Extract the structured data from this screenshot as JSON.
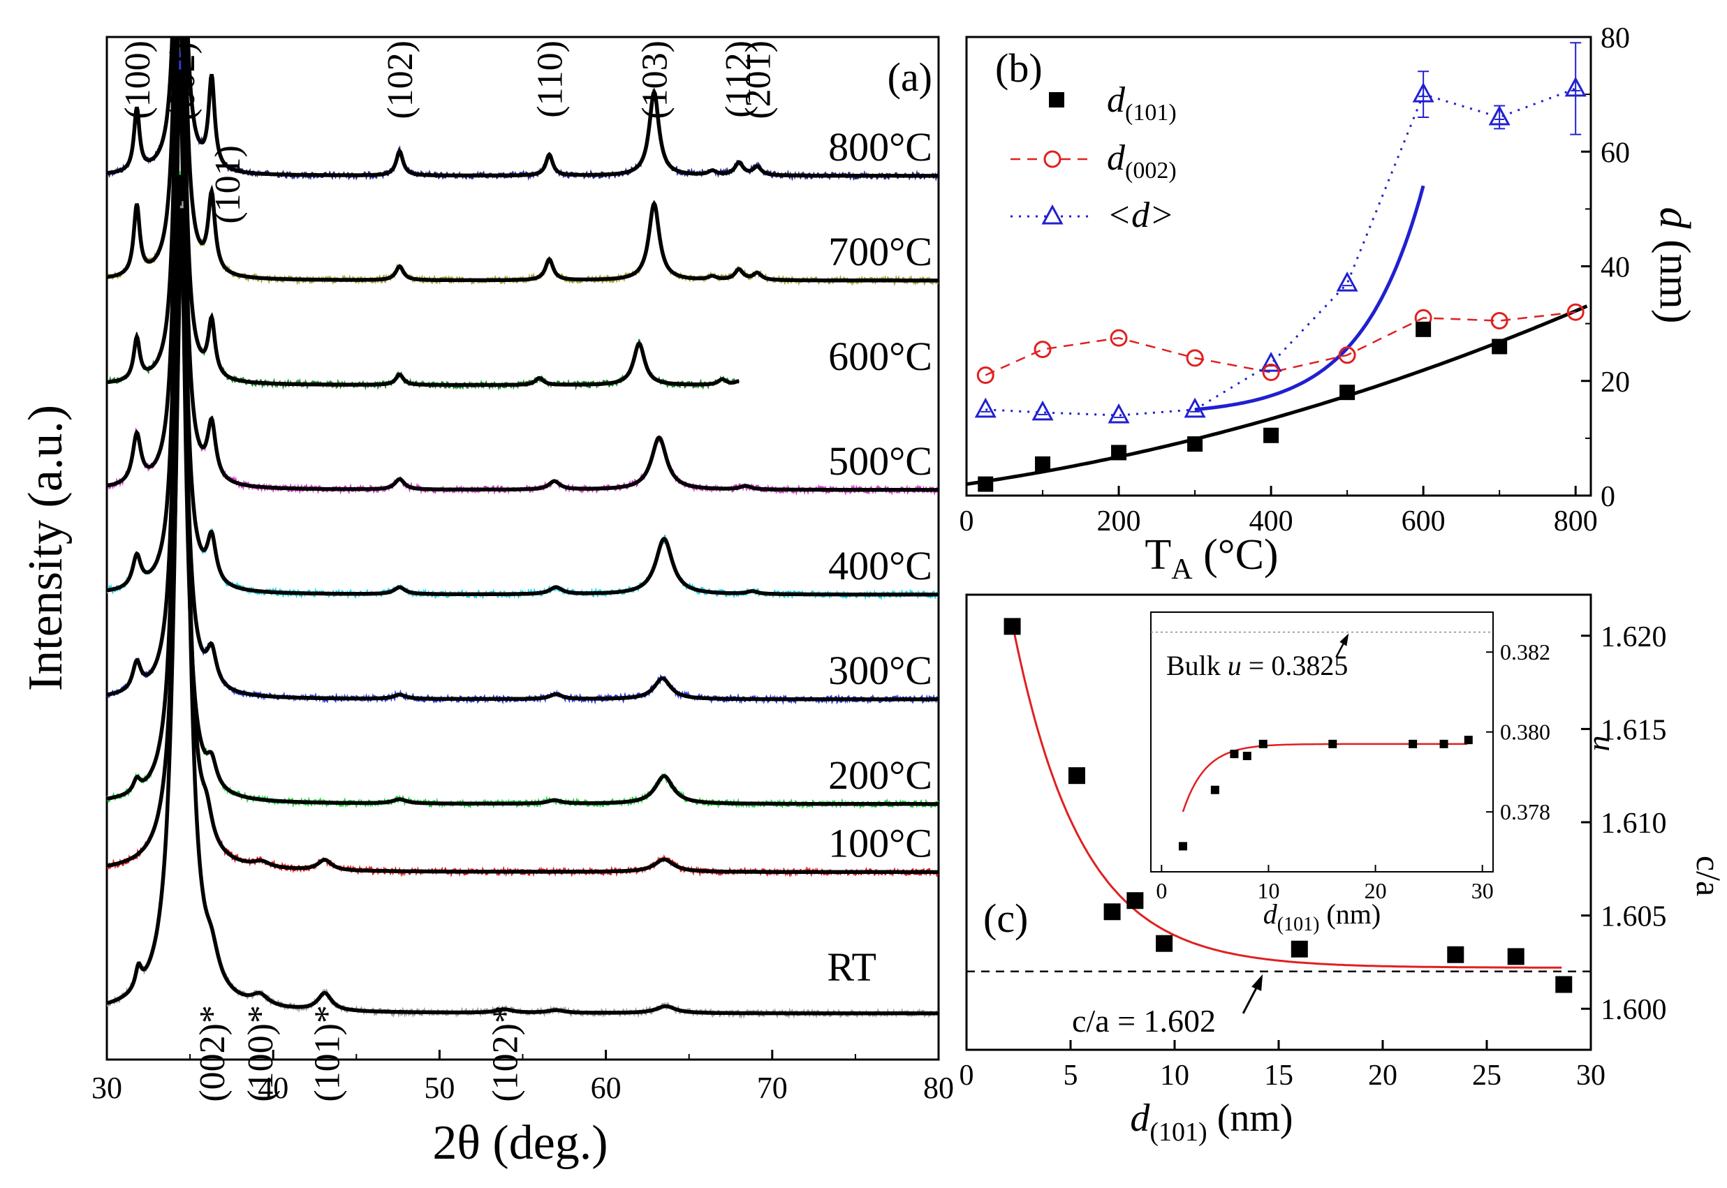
{
  "chart_data": [
    {
      "panel": "a",
      "type": "line",
      "panel_label": "(a)",
      "xlabel": "2θ (deg.)",
      "ylabel": "Intensity (a.u.)",
      "xlim": [
        30,
        80
      ],
      "xticks": [
        "30",
        "40",
        "50",
        "60",
        "70",
        "80"
      ],
      "colors": {
        "800°C": "#2b2f8c",
        "700°C": "#a8a036",
        "600°C": "#1f8a2c",
        "500°C": "#d040c8",
        "400°C": "#22d0e0",
        "300°C": "#2c3fd8",
        "200°C": "#22d040",
        "100°C": "#e02020",
        "RT": "#a0a0a0"
      },
      "peak_labels_top": [
        {
          "label": "(100)",
          "x": 31.8
        },
        {
          "label": "(002)",
          "x": 34.5
        },
        {
          "label": "(101)",
          "x": 36.3
        },
        {
          "label": "(102)",
          "x": 47.6
        },
        {
          "label": "(110)",
          "x": 56.6
        },
        {
          "label": "(103)",
          "x": 62.9
        },
        {
          "label": "(112)",
          "x": 67.9
        },
        {
          "label": "(201)",
          "x": 69.1
        }
      ],
      "peak_labels_rt": [
        {
          "label": "(002)*",
          "x": 36.3
        },
        {
          "label": "(100)*",
          "x": 39.2
        },
        {
          "label": "(101)*",
          "x": 43.2
        },
        {
          "label": "(102)*",
          "x": 53.9
        }
      ],
      "series": [
        {
          "name": "800°C",
          "level": 8,
          "peaks": [
            [
              31.8,
              0.9,
              0.2
            ],
            [
              34.4,
              9.0,
              0.25
            ],
            [
              36.3,
              1.3,
              0.22
            ],
            [
              47.6,
              0.35,
              0.25
            ],
            [
              56.6,
              0.3,
              0.25
            ],
            [
              62.9,
              1.2,
              0.35
            ],
            [
              66.4,
              0.06,
              0.3
            ],
            [
              68.0,
              0.18,
              0.3
            ],
            [
              69.1,
              0.12,
              0.3
            ]
          ]
        },
        {
          "name": "700°C",
          "level": 7,
          "peaks": [
            [
              31.8,
              1.0,
              0.22
            ],
            [
              34.4,
              9.0,
              0.27
            ],
            [
              36.3,
              1.1,
              0.25
            ],
            [
              47.6,
              0.2,
              0.28
            ],
            [
              56.6,
              0.3,
              0.28
            ],
            [
              62.9,
              1.1,
              0.38
            ],
            [
              66.4,
              0.05,
              0.3
            ],
            [
              68.0,
              0.15,
              0.3
            ],
            [
              69.1,
              0.1,
              0.3
            ]
          ]
        },
        {
          "name": "600°C",
          "level": 6,
          "peaks": [
            [
              31.8,
              0.6,
              0.22
            ],
            [
              34.4,
              9.0,
              0.27
            ],
            [
              36.3,
              0.8,
              0.25
            ],
            [
              47.6,
              0.15,
              0.28
            ],
            [
              56.0,
              0.1,
              0.3
            ],
            [
              62.0,
              0.6,
              0.4
            ],
            [
              67.0,
              0.08,
              0.3
            ],
            [
              68.0,
              0.05,
              0.3
            ]
          ]
        },
        {
          "name": "500°C",
          "level": 5,
          "peaks": [
            [
              31.8,
              0.7,
              0.3
            ],
            [
              34.4,
              9.0,
              0.3
            ],
            [
              36.3,
              0.8,
              0.3
            ],
            [
              47.6,
              0.15,
              0.35
            ],
            [
              56.9,
              0.12,
              0.4
            ],
            [
              63.2,
              0.75,
              0.55
            ],
            [
              68.4,
              0.05,
              0.4
            ]
          ]
        },
        {
          "name": "400°C",
          "level": 4,
          "peaks": [
            [
              31.8,
              0.45,
              0.3
            ],
            [
              34.4,
              9.0,
              0.32
            ],
            [
              36.3,
              0.65,
              0.32
            ],
            [
              47.6,
              0.1,
              0.4
            ],
            [
              57.0,
              0.1,
              0.45
            ],
            [
              63.5,
              0.8,
              0.6
            ],
            [
              68.8,
              0.04,
              0.4
            ]
          ]
        },
        {
          "name": "300°C",
          "level": 3,
          "peaks": [
            [
              31.8,
              0.4,
              0.3
            ],
            [
              34.4,
              9.0,
              0.35
            ],
            [
              36.3,
              0.5,
              0.35
            ],
            [
              47.6,
              0.06,
              0.45
            ],
            [
              57.0,
              0.07,
              0.45
            ],
            [
              63.4,
              0.3,
              0.6
            ]
          ]
        },
        {
          "name": "200°C",
          "level": 2,
          "peaks": [
            [
              31.8,
              0.18,
              0.25
            ],
            [
              34.4,
              9.0,
              0.4
            ],
            [
              36.3,
              0.35,
              0.35
            ],
            [
              47.6,
              0.06,
              0.5
            ],
            [
              56.9,
              0.05,
              0.5
            ],
            [
              63.5,
              0.4,
              0.65
            ]
          ]
        },
        {
          "name": "100°C",
          "level": 1.35,
          "peaks": [
            [
              34.5,
              9.0,
              0.45
            ],
            [
              36.0,
              0.4,
              0.4
            ],
            [
              39.3,
              0.08,
              0.6
            ],
            [
              43.1,
              0.15,
              0.5
            ],
            [
              63.5,
              0.18,
              0.7
            ]
          ]
        },
        {
          "name": "RT",
          "level": 0,
          "peaks": [
            [
              31.9,
              0.3,
              0.22
            ],
            [
              34.5,
              11.5,
              0.5
            ],
            [
              36.3,
              0.4,
              0.5
            ],
            [
              39.2,
              0.15,
              0.6
            ],
            [
              43.1,
              0.25,
              0.5
            ],
            [
              53.9,
              0.05,
              0.6
            ],
            [
              57.0,
              0.04,
              0.6
            ],
            [
              63.6,
              0.1,
              0.7
            ]
          ]
        }
      ]
    },
    {
      "panel": "b",
      "type": "scatter",
      "panel_label": "(b)",
      "xlabel_main": "T",
      "xlabel_sub": "A",
      "xlabel_unit": " (°C)",
      "ylabel_var": "d",
      "ylabel_unit": " (nm)",
      "xlim": [
        0,
        820
      ],
      "ylim": [
        0,
        80
      ],
      "xticks": [
        0,
        200,
        400,
        600,
        800
      ],
      "yticks": [
        0,
        20,
        40,
        60,
        80
      ],
      "legend": [
        {
          "main": "d",
          "sub": "(101)",
          "marker": "square"
        },
        {
          "main": "d",
          "sub": "(002)",
          "marker": "circle"
        },
        {
          "main": "<d>",
          "sub": "",
          "marker": "triangle"
        }
      ],
      "series": [
        {
          "name": "d(101)",
          "color": "#000000",
          "x": [
            25,
            100,
            200,
            300,
            400,
            500,
            600,
            700
          ],
          "y": [
            2,
            5.5,
            7.5,
            9,
            10.5,
            18,
            29,
            26
          ]
        },
        {
          "name": "d(002)",
          "color": "#e02020",
          "x": [
            25,
            100,
            200,
            300,
            400,
            500,
            600,
            700,
            800
          ],
          "y": [
            21,
            25.5,
            27.5,
            24,
            21.5,
            24.5,
            31,
            30.5,
            32
          ]
        },
        {
          "name": "<d>",
          "color": "#2020d0",
          "x": [
            25,
            100,
            200,
            300,
            400,
            500,
            600,
            700,
            800
          ],
          "y": [
            15,
            14.5,
            14,
            15,
            23,
            37,
            70,
            66,
            71
          ],
          "err": [
            0,
            0,
            0,
            0,
            0,
            0,
            4,
            2,
            8
          ]
        }
      ],
      "fits": [
        {
          "name": "d(101) fit",
          "color": "#000000",
          "xmin": 0,
          "xmax": 815,
          "a": 2.0,
          "b": 0.0192,
          "c": 2.32e-05
        },
        {
          "name": "<d> fit",
          "color": "#2020d0",
          "xmin": 300,
          "xmax": 600,
          "base": 15,
          "amp": 1.0,
          "rate": 0.0123
        }
      ]
    },
    {
      "panel": "c",
      "type": "scatter",
      "panel_label": "(c)",
      "xlabel_main": "d",
      "xlabel_sub": "(101)",
      "xlabel_unit": " (nm)",
      "ylabel": "c/a",
      "xlim": [
        0,
        30
      ],
      "ylim": [
        1.5978,
        1.6222
      ],
      "xticks": [
        0,
        5,
        10,
        15,
        20,
        25,
        30
      ],
      "yticks": [
        "1.600",
        "1.605",
        "1.610",
        "1.615",
        "1.620"
      ],
      "reference_line": 1.602,
      "reference_label": "c/a = 1.602",
      "series": [
        {
          "name": "c/a",
          "color": "#000000",
          "x": [
            2.2,
            5.3,
            7.0,
            8.1,
            9.5,
            16.0,
            23.5,
            26.4,
            28.7
          ],
          "y": [
            1.6205,
            1.6125,
            1.6052,
            1.6058,
            1.6035,
            1.6032,
            1.6029,
            1.6028,
            1.6013
          ]
        }
      ],
      "fit": {
        "color": "#e02020",
        "y0": 1.6022,
        "amp": 0.036,
        "tau": 3.3,
        "xmin": 2.2,
        "xmax": 28.7
      },
      "inset": {
        "ylabel": "u",
        "xlabel_main": "d",
        "xlabel_sub": "(101)",
        "xlabel_unit": " (nm)",
        "xlim": [
          -1,
          31
        ],
        "ylim": [
          0.3765,
          0.383
        ],
        "xticks": [
          0,
          10,
          20,
          30
        ],
        "yticks": [
          "0.378",
          "0.380",
          "0.382"
        ],
        "bulk_value": 0.3825,
        "bulk_label_prefix": "Bulk ",
        "bulk_label_var": "u",
        "bulk_label_value": " = 0.3825",
        "series": {
          "color": "#000000",
          "x": [
            2.0,
            5.0,
            6.8,
            8.0,
            9.5,
            16.0,
            23.5,
            26.4,
            28.7
          ],
          "y": [
            0.37714,
            0.37855,
            0.37945,
            0.3794,
            0.3797,
            0.3797,
            0.3797,
            0.3797,
            0.3798
          ]
        },
        "fit": {
          "color": "#e02020",
          "y0": 0.3797,
          "amp": 0.0044,
          "tau": 2.1,
          "xmin": 2.0,
          "xmax": 28.7
        }
      }
    }
  ]
}
